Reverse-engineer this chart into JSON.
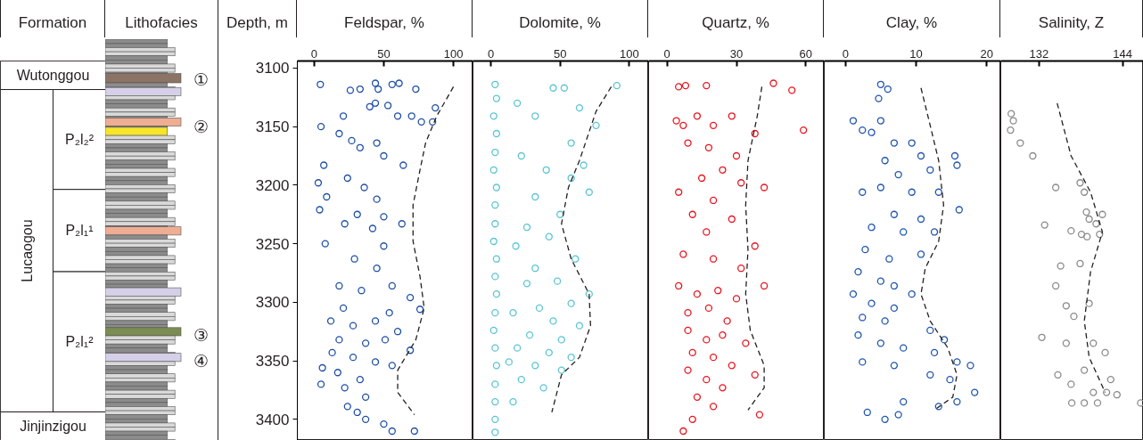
{
  "chart_data": [
    {
      "type": "scatter",
      "xlabel": "Feldspar, %",
      "ylabel": "Depth, m",
      "xlim": [
        -12,
        114
      ],
      "xticks": [
        0,
        50,
        100
      ],
      "ylim": [
        3418,
        3094
      ],
      "yticks": [
        3100,
        3150,
        3200,
        3250,
        3300,
        3350,
        3400
      ],
      "annotations": [
        "Formation",
        "Lithofacies",
        "①",
        "②",
        "③",
        "④",
        "Wutonggou",
        "Lucaogou",
        "P₂l₂²",
        "P₂l₁¹",
        "P₂l₁²",
        "Jinjinzigou"
      ],
      "series": [
        {
          "type": "scatter",
          "marker": "circle",
          "color": "#1f4fa8",
          "x": [
            4.5,
            26,
            33,
            44,
            46,
            56,
            61,
            73,
            87,
            44,
            40,
            53,
            21,
            60,
            70,
            77,
            85,
            5,
            18,
            27,
            33,
            45,
            50,
            64,
            7,
            3,
            9,
            4,
            24,
            36,
            45,
            31,
            50,
            22,
            42,
            63,
            8,
            29,
            50,
            45,
            18,
            34,
            56,
            69,
            76,
            54,
            21,
            12,
            28,
            44,
            60,
            18,
            37,
            51,
            69,
            13,
            28,
            44,
            56,
            6,
            17,
            33,
            5,
            22,
            37,
            24,
            31,
            37,
            50,
            56,
            72
          ],
          "values": [
            3114,
            3119,
            3118,
            3113,
            3118,
            3114,
            3113,
            3118,
            3134,
            3130,
            3133,
            3132,
            3141,
            3141,
            3141,
            3146,
            3146,
            3150,
            3156,
            3162,
            3168,
            3164,
            3175,
            3183,
            3183,
            3198,
            3210,
            3221,
            3194,
            3202,
            3212,
            3225,
            3227,
            3233,
            3237,
            3233,
            3250,
            3263,
            3252,
            3271,
            3286,
            3290,
            3286,
            3296,
            3306,
            3309,
            3305,
            3316,
            3320,
            3316,
            3325,
            3332,
            3335,
            3332,
            3341,
            3343,
            3347,
            3351,
            3354,
            3356,
            3360,
            3366,
            3370,
            3373,
            3381,
            3389,
            3394,
            3400,
            3404,
            3410,
            3410
          ]
        },
        {
          "type": "line",
          "line_style": "dashed",
          "color": "#231f20",
          "x": [
            100,
            88,
            80,
            76,
            71,
            71,
            76,
            79,
            73,
            60,
            60,
            72
          ],
          "values": [
            3116,
            3141,
            3164,
            3187,
            3217,
            3248,
            3278,
            3305,
            3332,
            3358,
            3377,
            3396
          ]
        }
      ]
    },
    {
      "type": "scatter",
      "xlabel": "Dolomite, %",
      "xlim": [
        -13,
        114
      ],
      "xticks": [
        0,
        50,
        100
      ],
      "ylim": [
        3418,
        3094
      ],
      "tick_labels": "x",
      "series": [
        {
          "type": "scatter",
          "marker": "circle",
          "color": "#5bc5d3",
          "x": [
            3,
            4,
            2,
            4,
            3,
            2,
            4,
            3,
            3,
            2,
            4,
            3,
            4,
            3,
            2,
            3,
            4,
            3,
            3,
            3,
            3,
            45,
            53,
            91,
            19,
            32,
            64,
            76,
            58,
            22,
            40,
            67,
            58,
            71,
            32,
            50,
            26,
            42,
            18,
            61,
            32,
            26,
            48,
            71,
            58,
            35,
            16,
            45,
            64,
            28,
            51,
            19,
            42,
            58,
            13,
            32,
            51,
            22,
            38,
            16
          ],
          "values": [
            3114,
            3126,
            3141,
            3156,
            3172,
            3187,
            3202,
            3217,
            3233,
            3248,
            3263,
            3278,
            3293,
            3309,
            3324,
            3339,
            3354,
            3370,
            3385,
            3400,
            3411,
            3117,
            3117,
            3115,
            3130,
            3141,
            3134,
            3149,
            3164,
            3175,
            3187,
            3183,
            3194,
            3206,
            3210,
            3225,
            3236,
            3244,
            3252,
            3263,
            3271,
            3284,
            3282,
            3293,
            3301,
            3305,
            3309,
            3316,
            3320,
            3328,
            3332,
            3339,
            3343,
            3347,
            3351,
            3354,
            3358,
            3366,
            3373,
            3385
          ]
        },
        {
          "type": "line",
          "line_style": "dashed",
          "color": "#231f20",
          "x": [
            87,
            76,
            64,
            56,
            51,
            58,
            71,
            72,
            64,
            51,
            44
          ],
          "values": [
            3116,
            3137,
            3179,
            3202,
            3233,
            3263,
            3293,
            3320,
            3347,
            3362,
            3394
          ]
        }
      ]
    },
    {
      "type": "scatter",
      "xlabel": "Quartz, %",
      "xlim": [
        -8,
        68
      ],
      "xticks": [
        0,
        30,
        60
      ],
      "ylim": [
        3418,
        3094
      ],
      "tick_labels": "x",
      "series": [
        {
          "type": "scatter",
          "marker": "circle",
          "color": "#e8151f",
          "x": [
            5,
            8,
            17,
            46,
            54,
            59,
            4,
            7,
            13,
            20,
            28,
            38,
            9,
            18,
            30,
            24,
            15,
            32,
            42,
            5,
            20,
            11,
            28,
            17,
            38,
            7,
            20,
            32,
            5,
            13,
            22,
            30,
            42,
            9,
            18,
            26,
            9,
            17,
            24,
            34,
            11,
            20,
            28,
            38,
            9,
            17,
            24,
            13,
            20,
            40,
            11,
            7
          ],
          "values": [
            3116,
            3115,
            3115,
            3113,
            3119,
            3153,
            3145,
            3149,
            3141,
            3149,
            3141,
            3156,
            3164,
            3168,
            3175,
            3187,
            3194,
            3198,
            3202,
            3206,
            3213,
            3225,
            3229,
            3240,
            3252,
            3259,
            3263,
            3271,
            3286,
            3293,
            3290,
            3297,
            3286,
            3309,
            3305,
            3316,
            3324,
            3332,
            3328,
            3335,
            3343,
            3347,
            3354,
            3362,
            3358,
            3366,
            3373,
            3381,
            3389,
            3396,
            3400,
            3410
          ]
        },
        {
          "type": "line",
          "line_style": "dashed",
          "color": "#231f20",
          "x": [
            41,
            39,
            35,
            34,
            35,
            34,
            36,
            42,
            42,
            35
          ],
          "values": [
            3116,
            3141,
            3179,
            3217,
            3255,
            3293,
            3324,
            3354,
            3373,
            3392
          ]
        }
      ]
    },
    {
      "type": "scatter",
      "xlabel": "Clay, %",
      "xlim": [
        -3,
        22
      ],
      "xticks": [
        0,
        10,
        20
      ],
      "ylim": [
        3418,
        3094
      ],
      "tick_labels": "x",
      "series": [
        {
          "type": "scatter",
          "marker": "circle",
          "color": "#1f55b0",
          "x": [
            5.0,
            6.0,
            4.7,
            1.1,
            2.4,
            3.7,
            5.0,
            6.9,
            9.4,
            10.7,
            5.6,
            7.5,
            15.5,
            15.8,
            12.0,
            2.4,
            5.0,
            9.4,
            13.2,
            16.1,
            6.9,
            10.7,
            3.7,
            8.2,
            12.6,
            2.8,
            6.2,
            10.7,
            1.8,
            5.0,
            6.9,
            9.4,
            1.1,
            3.7,
            6.9,
            2.4,
            5.6,
            12.0,
            14.0,
            1.8,
            5.0,
            8.2,
            12.6,
            15.8,
            17.7,
            2.4,
            6.9,
            12.0,
            14.8,
            18.3,
            15.8,
            13.2,
            8.2,
            3.1,
            7.5,
            5.6
          ],
          "values": [
            3114,
            3118,
            3126,
            3145,
            3153,
            3155,
            3145,
            3164,
            3164,
            3175,
            3179,
            3191,
            3175,
            3183,
            3187,
            3206,
            3202,
            3206,
            3206,
            3221,
            3225,
            3229,
            3236,
            3240,
            3240,
            3255,
            3263,
            3259,
            3274,
            3282,
            3286,
            3293,
            3293,
            3301,
            3305,
            3313,
            3316,
            3324,
            3332,
            3328,
            3335,
            3339,
            3343,
            3351,
            3354,
            3351,
            3354,
            3362,
            3366,
            3377,
            3385,
            3389,
            3385,
            3394,
            3396,
            3400
          ]
        },
        {
          "type": "line",
          "line_style": "dashed",
          "color": "#231f20",
          "x": [
            10.7,
            12.0,
            13.2,
            13.9,
            13.2,
            11.3,
            10.7,
            12.0,
            14.5,
            15.8,
            15.2,
            12.6
          ],
          "values": [
            3117,
            3149,
            3179,
            3217,
            3248,
            3271,
            3293,
            3316,
            3339,
            3362,
            3381,
            3392
          ]
        }
      ]
    },
    {
      "type": "scatter",
      "xlabel": "Salinity, Z",
      "xlim": [
        126.5,
        147
      ],
      "xticks": [
        132,
        144
      ],
      "ylim": [
        3418,
        3094
      ],
      "tick_labels": "x",
      "series": [
        {
          "type": "scatter",
          "marker": "circle",
          "color": "#8a8a8a",
          "x": [
            128.0,
            128.3,
            127.9,
            129.3,
            131.1,
            134.4,
            137.9,
            138.5,
            138.8,
            141.1,
            139.2,
            140.2,
            132.8,
            136.6,
            138.1,
            138.9,
            140.7,
            135.1,
            137.9,
            134.4,
            135.9,
            139.2,
            137.0,
            132.4,
            135.9,
            139.8,
            141.5,
            138.5,
            134.7,
            142.3,
            136.6,
            139.8,
            141.7,
            143.2,
            136.7,
            138.5,
            140.4,
            146.6
          ],
          "values": [
            3139,
            3145,
            3153,
            3164,
            3175,
            3202,
            3198,
            3206,
            3223,
            3225,
            3229,
            3233,
            3234,
            3239,
            3242,
            3244,
            3242,
            3269,
            3267,
            3286,
            3303,
            3301,
            3312,
            3330,
            3335,
            3335,
            3343,
            3358,
            3362,
            3366,
            3370,
            3377,
            3377,
            3379,
            3386,
            3386,
            3386,
            3386
          ]
        },
        {
          "type": "line",
          "line_style": "dashed",
          "color": "#231f20",
          "x": [
            134.6,
            136.6,
            139.4,
            141.1,
            139.4,
            138.5,
            139.2,
            141.5
          ],
          "values": [
            3130,
            3175,
            3206,
            3240,
            3274,
            3316,
            3347,
            3377
          ]
        }
      ]
    }
  ]
}
